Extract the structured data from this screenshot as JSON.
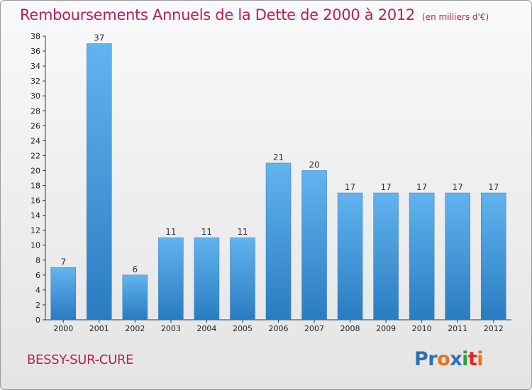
{
  "header": {
    "title": "Remboursements Annuels de la Dette de 2000 à 2012",
    "subtitle": "(en milliers d'€)"
  },
  "footer": {
    "place": "BESSY-SUR-CURE",
    "logo_text": "Proxiti",
    "logo_colors": [
      "#2f6fb5",
      "#2f6fb5",
      "#e8731a",
      "#2f6fb5",
      "#2aa63a",
      "#e0262a",
      "#e8731a"
    ]
  },
  "colors": {
    "bar": "#3d95dc",
    "bar_light": "#61b4ee",
    "bar_dark": "#2a7cc2",
    "title": "#b0245e"
  },
  "chart_data": {
    "type": "bar",
    "categories": [
      "2000",
      "2001",
      "2002",
      "2003",
      "2004",
      "2005",
      "2006",
      "2007",
      "2008",
      "2009",
      "2010",
      "2011",
      "2012"
    ],
    "values": [
      7,
      37,
      6,
      11,
      11,
      11,
      21,
      20,
      17,
      17,
      17,
      17,
      17
    ],
    "title": "Remboursements Annuels de la Dette de 2000 à 2012",
    "ylim": [
      0,
      38
    ],
    "yticks": [
      0,
      2,
      4,
      6,
      8,
      10,
      12,
      14,
      16,
      18,
      20,
      22,
      24,
      26,
      28,
      30,
      32,
      34,
      36,
      38
    ],
    "grid": false,
    "data_labels": true
  }
}
